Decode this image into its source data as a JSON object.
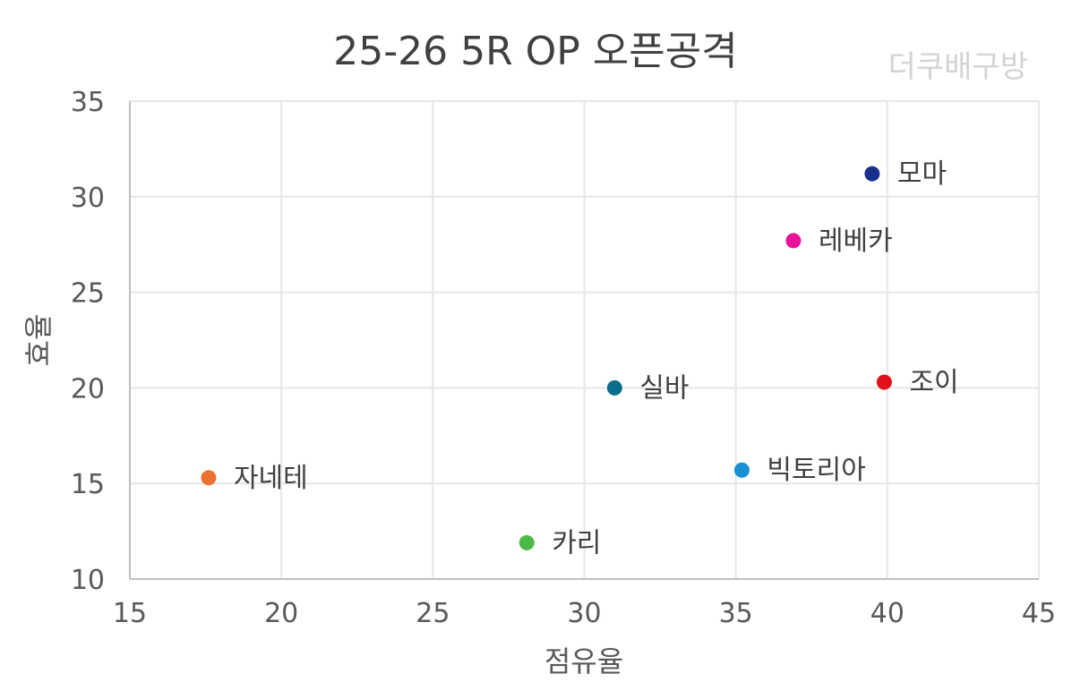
{
  "watermark": "더쿠배구방",
  "chart_data": {
    "type": "scatter",
    "title": "25-26 5R OP 오픈공격",
    "xlabel": "점유율",
    "ylabel": "효율",
    "xlim": [
      15,
      45
    ],
    "ylim": [
      10,
      35
    ],
    "xticks": [
      15,
      20,
      25,
      30,
      35,
      40,
      45
    ],
    "yticks": [
      10,
      15,
      20,
      25,
      30,
      35
    ],
    "grid": true,
    "points": [
      {
        "label": "모마",
        "x": 39.5,
        "y": 31.2,
        "color": "#1a2f8a"
      },
      {
        "label": "레베카",
        "x": 36.9,
        "y": 27.7,
        "color": "#e8139a"
      },
      {
        "label": "실바",
        "x": 31.0,
        "y": 20.0,
        "color": "#0a6e8a"
      },
      {
        "label": "조이",
        "x": 39.9,
        "y": 20.3,
        "color": "#e3101c"
      },
      {
        "label": "빅토리아",
        "x": 35.2,
        "y": 15.7,
        "color": "#1a8fd6"
      },
      {
        "label": "자네테",
        "x": 17.6,
        "y": 15.3,
        "color": "#ec7232"
      },
      {
        "label": "카리",
        "x": 28.1,
        "y": 11.9,
        "color": "#4cb847"
      }
    ]
  }
}
